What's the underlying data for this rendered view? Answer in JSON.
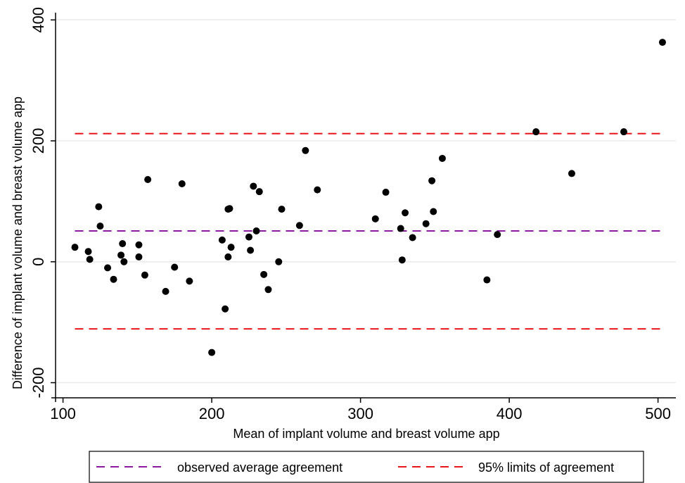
{
  "chart_data": {
    "type": "scatter",
    "title": "",
    "xlabel": "Mean of implant volume and breast volume app",
    "ylabel": "Difference of implant volume and  breast volume app",
    "xlim": [
      95,
      512
    ],
    "ylim": [
      -225,
      412
    ],
    "xticks": [
      100,
      200,
      300,
      400,
      500
    ],
    "yticks": [
      -200,
      0,
      200,
      400
    ],
    "grid": "horizontal",
    "legend_position": "bottom",
    "lines": [
      {
        "name": "observed average agreement",
        "y": 51,
        "color": "#8B1A9E",
        "style": "dashed"
      },
      {
        "name": "95% limits of agreement",
        "y": 212,
        "color": "#E8161B",
        "style": "dashed"
      },
      {
        "name": "95% limits of agreement",
        "y": -111,
        "color": "#E8161B",
        "style": "dashed"
      }
    ],
    "series": [
      {
        "marker_color": "#000000",
        "points": [
          [
            108,
            24
          ],
          [
            117,
            17
          ],
          [
            118,
            4
          ],
          [
            124,
            91
          ],
          [
            125,
            59
          ],
          [
            130,
            -10
          ],
          [
            134,
            -29
          ],
          [
            139,
            11
          ],
          [
            140,
            30
          ],
          [
            141,
            0
          ],
          [
            151,
            8
          ],
          [
            151,
            28
          ],
          [
            155,
            -22
          ],
          [
            157,
            136
          ],
          [
            169,
            -49
          ],
          [
            175,
            -9
          ],
          [
            180,
            129
          ],
          [
            185,
            -32
          ],
          [
            200,
            -150
          ],
          [
            207,
            36
          ],
          [
            209,
            -78
          ],
          [
            211,
            87
          ],
          [
            211,
            8
          ],
          [
            212,
            88
          ],
          [
            213,
            24
          ],
          [
            225,
            41
          ],
          [
            226,
            19
          ],
          [
            228,
            125
          ],
          [
            230,
            51
          ],
          [
            232,
            116
          ],
          [
            235,
            -21
          ],
          [
            238,
            -46
          ],
          [
            245,
            0
          ],
          [
            247,
            87
          ],
          [
            259,
            60
          ],
          [
            263,
            184
          ],
          [
            271,
            119
          ],
          [
            310,
            71
          ],
          [
            317,
            115
          ],
          [
            327,
            55
          ],
          [
            328,
            3
          ],
          [
            330,
            81
          ],
          [
            335,
            40
          ],
          [
            344,
            63
          ],
          [
            348,
            134
          ],
          [
            349,
            83
          ],
          [
            355,
            171
          ],
          [
            385,
            -30
          ],
          [
            392,
            45
          ],
          [
            418,
            215
          ],
          [
            442,
            146
          ],
          [
            477,
            215
          ],
          [
            503,
            363
          ]
        ]
      }
    ]
  },
  "legend": {
    "items": [
      {
        "label": "observed average agreement",
        "color": "#8B1A9E"
      },
      {
        "label": "95% limits of agreement",
        "color": "#E8161B"
      }
    ]
  }
}
